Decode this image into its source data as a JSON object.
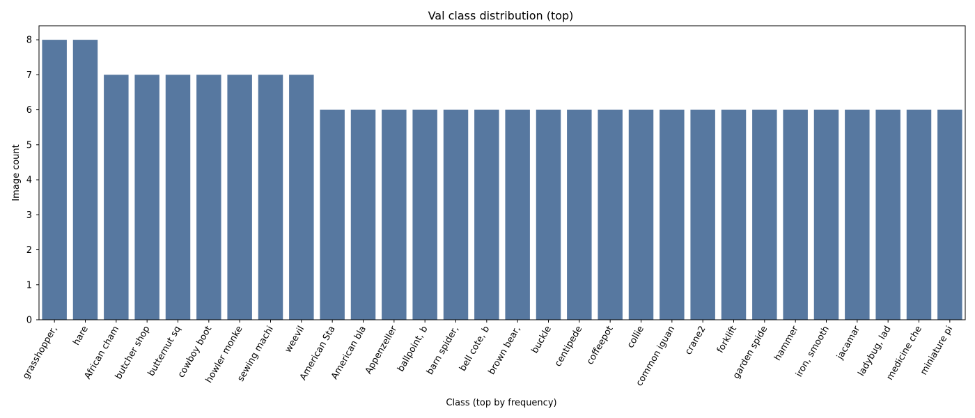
{
  "chart_data": {
    "type": "bar",
    "title": "Val class distribution (top)",
    "xlabel": "Class (top by frequency)",
    "ylabel": "Image count",
    "categories": [
      "grasshopper,",
      "hare",
      "African cham",
      "butcher shop",
      "butternut sq",
      "cowboy boot",
      "howler monke",
      "sewing machi",
      "weevil",
      "American Sta",
      "American bla",
      "Appenzeller",
      "ballpoint, b",
      "barn spider,",
      "bell cote, b",
      "brown bear,",
      "buckle",
      "centipede",
      "coffeepot",
      "collie",
      "common iguan",
      "crane2",
      "forklift",
      "garden spide",
      "hammer",
      "iron, smooth",
      "jacamar",
      "ladybug, lad",
      "medicine che",
      "miniature pi"
    ],
    "values": [
      8,
      8,
      7,
      7,
      7,
      7,
      7,
      7,
      7,
      6,
      6,
      6,
      6,
      6,
      6,
      6,
      6,
      6,
      6,
      6,
      6,
      6,
      6,
      6,
      6,
      6,
      6,
      6,
      6,
      6
    ],
    "ylim": [
      0,
      8.4
    ],
    "yticks": [
      0,
      1,
      2,
      3,
      4,
      5,
      6,
      7,
      8
    ],
    "bar_color": "#5778a0",
    "grid": false,
    "legend": "none"
  }
}
